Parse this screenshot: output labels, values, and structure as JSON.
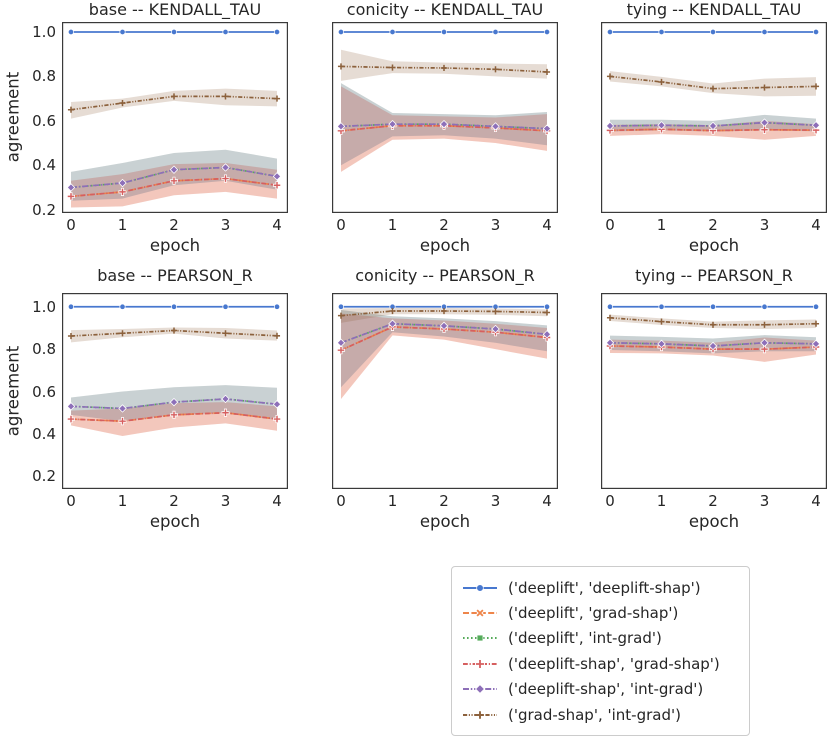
{
  "figure": {
    "background": "#ffffff",
    "text_color": "#262626",
    "spine_color": "#3a3a3a",
    "ylabel": "agreement",
    "xlabel": "epoch"
  },
  "series_styles": [
    {
      "name": "('deeplift', 'deeplift-shap')",
      "color": "#4878cf",
      "marker": "circle",
      "dash": "solid"
    },
    {
      "name": "('deeplift', 'grad-shap')",
      "color": "#ee854a",
      "marker": "x-bold",
      "dash": "dashed"
    },
    {
      "name": "('deeplift', 'int-grad')",
      "color": "#55ab5a",
      "marker": "square",
      "dash": "dotted"
    },
    {
      "name": "('deeplift-shap', 'grad-shap')",
      "color": "#d65f5f",
      "marker": "plus-bold",
      "dash": "dashdot"
    },
    {
      "name": "('deeplift-shap', 'int-grad')",
      "color": "#8d6fb8",
      "marker": "diamond",
      "dash": "longdashdot"
    },
    {
      "name": "('grad-shap', 'int-grad')",
      "color": "#8c613c",
      "marker": "plus-thin",
      "dash": "dashdotdot"
    }
  ],
  "chart_data": [
    {
      "type": "line",
      "title": "base -- KENDALL_TAU",
      "xlabel": "epoch",
      "ylabel": "agreement",
      "x": [
        0,
        1,
        2,
        3,
        4
      ],
      "xticks": [
        "0",
        "1",
        "2",
        "3",
        "4"
      ],
      "yticks": [
        1.0,
        0.8,
        0.6,
        0.4,
        0.2
      ],
      "ylim": [
        0.185,
        1.045
      ],
      "grid": false,
      "series": [
        {
          "name": "('deeplift', 'deeplift-shap')",
          "values": [
            1.0,
            1.0,
            1.0,
            1.0,
            1.0
          ]
        },
        {
          "name": "('deeplift', 'grad-shap')",
          "values": [
            0.26,
            0.28,
            0.33,
            0.34,
            0.31
          ],
          "band_low": [
            0.21,
            0.215,
            0.265,
            0.28,
            0.25
          ],
          "band_high": [
            0.33,
            0.36,
            0.405,
            0.41,
            0.38
          ]
        },
        {
          "name": "('deeplift', 'int-grad')",
          "values": [
            0.3,
            0.32,
            0.38,
            0.39,
            0.35
          ],
          "band_low": [
            0.24,
            0.25,
            0.31,
            0.33,
            0.29
          ],
          "band_high": [
            0.37,
            0.41,
            0.455,
            0.47,
            0.43
          ]
        },
        {
          "name": "('deeplift-shap', 'grad-shap')",
          "values": [
            0.26,
            0.28,
            0.33,
            0.34,
            0.31
          ],
          "band_low": [
            0.21,
            0.215,
            0.265,
            0.28,
            0.25
          ],
          "band_high": [
            0.33,
            0.36,
            0.405,
            0.41,
            0.38
          ]
        },
        {
          "name": "('deeplift-shap', 'int-grad')",
          "values": [
            0.3,
            0.32,
            0.38,
            0.39,
            0.35
          ],
          "band_low": [
            0.24,
            0.25,
            0.31,
            0.33,
            0.29
          ],
          "band_high": [
            0.37,
            0.41,
            0.455,
            0.47,
            0.43
          ]
        },
        {
          "name": "('grad-shap', 'int-grad')",
          "values": [
            0.65,
            0.68,
            0.71,
            0.71,
            0.7
          ],
          "band_low": [
            0.61,
            0.66,
            0.69,
            0.67,
            0.665
          ],
          "band_high": [
            0.685,
            0.7,
            0.735,
            0.745,
            0.735
          ]
        }
      ]
    },
    {
      "type": "line",
      "title": "conicity -- KENDALL_TAU",
      "xlabel": "epoch",
      "ylabel": "agreement",
      "x": [
        0,
        1,
        2,
        3,
        4
      ],
      "xticks": [
        "0",
        "1",
        "2",
        "3",
        "4"
      ],
      "yticks": [
        1.0,
        0.8,
        0.6,
        0.4,
        0.2
      ],
      "ylim": [
        0.185,
        1.045
      ],
      "grid": false,
      "series": [
        {
          "name": "('deeplift', 'deeplift-shap')",
          "values": [
            1.0,
            1.0,
            1.0,
            1.0,
            1.0
          ]
        },
        {
          "name": "('deeplift', 'grad-shap')",
          "values": [
            0.555,
            0.578,
            0.578,
            0.568,
            0.555
          ],
          "band_low": [
            0.37,
            0.515,
            0.52,
            0.5,
            0.465
          ],
          "band_high": [
            0.755,
            0.625,
            0.62,
            0.615,
            0.63
          ]
        },
        {
          "name": "('deeplift', 'int-grad')",
          "values": [
            0.575,
            0.585,
            0.585,
            0.575,
            0.565
          ],
          "band_low": [
            0.4,
            0.53,
            0.535,
            0.52,
            0.49
          ],
          "band_high": [
            0.77,
            0.635,
            0.63,
            0.625,
            0.64
          ]
        },
        {
          "name": "('deeplift-shap', 'grad-shap')",
          "values": [
            0.555,
            0.578,
            0.578,
            0.568,
            0.555
          ],
          "band_low": [
            0.37,
            0.515,
            0.52,
            0.5,
            0.465
          ],
          "band_high": [
            0.755,
            0.625,
            0.62,
            0.615,
            0.63
          ]
        },
        {
          "name": "('deeplift-shap', 'int-grad')",
          "values": [
            0.575,
            0.585,
            0.585,
            0.575,
            0.565
          ],
          "band_low": [
            0.4,
            0.53,
            0.535,
            0.52,
            0.49
          ],
          "band_high": [
            0.77,
            0.635,
            0.63,
            0.625,
            0.64
          ]
        },
        {
          "name": "('grad-shap', 'int-grad')",
          "values": [
            0.845,
            0.84,
            0.838,
            0.832,
            0.82
          ],
          "band_low": [
            0.78,
            0.815,
            0.812,
            0.8,
            0.79
          ],
          "band_high": [
            0.92,
            0.868,
            0.862,
            0.858,
            0.855
          ]
        }
      ]
    },
    {
      "type": "line",
      "title": "tying -- KENDALL_TAU",
      "xlabel": "epoch",
      "ylabel": "agreement",
      "x": [
        0,
        1,
        2,
        3,
        4
      ],
      "xticks": [
        "0",
        "1",
        "2",
        "3",
        "4"
      ],
      "yticks": [
        1.0,
        0.8,
        0.6,
        0.4,
        0.2
      ],
      "ylim": [
        0.185,
        1.045
      ],
      "grid": false,
      "series": [
        {
          "name": "('deeplift', 'deeplift-shap')",
          "values": [
            1.0,
            1.0,
            1.0,
            1.0,
            1.0
          ]
        },
        {
          "name": "('deeplift', 'grad-shap')",
          "values": [
            0.557,
            0.562,
            0.556,
            0.56,
            0.558
          ],
          "band_low": [
            0.532,
            0.54,
            0.532,
            0.515,
            0.532
          ],
          "band_high": [
            0.582,
            0.585,
            0.58,
            0.6,
            0.585
          ]
        },
        {
          "name": "('deeplift', 'int-grad')",
          "values": [
            0.577,
            0.58,
            0.577,
            0.592,
            0.58
          ],
          "band_low": [
            0.552,
            0.557,
            0.552,
            0.557,
            0.553
          ],
          "band_high": [
            0.605,
            0.605,
            0.6,
            0.627,
            0.61
          ]
        },
        {
          "name": "('deeplift-shap', 'grad-shap')",
          "values": [
            0.557,
            0.562,
            0.556,
            0.56,
            0.558
          ],
          "band_low": [
            0.532,
            0.54,
            0.532,
            0.515,
            0.532
          ],
          "band_high": [
            0.582,
            0.585,
            0.58,
            0.6,
            0.585
          ]
        },
        {
          "name": "('deeplift-shap', 'int-grad')",
          "values": [
            0.577,
            0.58,
            0.577,
            0.592,
            0.58
          ],
          "band_low": [
            0.552,
            0.557,
            0.552,
            0.557,
            0.553
          ],
          "band_high": [
            0.605,
            0.605,
            0.6,
            0.627,
            0.61
          ]
        },
        {
          "name": "('grad-shap', 'int-grad')",
          "values": [
            0.8,
            0.775,
            0.745,
            0.75,
            0.755
          ],
          "band_low": [
            0.777,
            0.755,
            0.725,
            0.71,
            0.713
          ],
          "band_high": [
            0.824,
            0.798,
            0.768,
            0.79,
            0.797
          ]
        }
      ]
    },
    {
      "type": "line",
      "title": "base -- PEARSON_R",
      "xlabel": "epoch",
      "ylabel": "agreement",
      "x": [
        0,
        1,
        2,
        3,
        4
      ],
      "xticks": [
        "0",
        "1",
        "2",
        "3",
        "4"
      ],
      "yticks": [
        1.0,
        0.8,
        0.6,
        0.4,
        0.2
      ],
      "ylim": [
        0.14,
        1.065
      ],
      "grid": false,
      "series": [
        {
          "name": "('deeplift', 'deeplift-shap')",
          "values": [
            1.0,
            1.0,
            1.0,
            1.0,
            1.0
          ]
        },
        {
          "name": "('deeplift', 'grad-shap')",
          "values": [
            0.47,
            0.46,
            0.49,
            0.5,
            0.47
          ],
          "band_low": [
            0.44,
            0.39,
            0.43,
            0.45,
            0.415
          ],
          "band_high": [
            0.51,
            0.52,
            0.545,
            0.55,
            0.53
          ]
        },
        {
          "name": "('deeplift', 'int-grad')",
          "values": [
            0.53,
            0.52,
            0.55,
            0.565,
            0.54
          ],
          "band_low": [
            0.49,
            0.46,
            0.49,
            0.5,
            0.465
          ],
          "band_high": [
            0.572,
            0.6,
            0.62,
            0.63,
            0.618
          ]
        },
        {
          "name": "('deeplift-shap', 'grad-shap')",
          "values": [
            0.47,
            0.46,
            0.49,
            0.5,
            0.47
          ],
          "band_low": [
            0.44,
            0.39,
            0.43,
            0.45,
            0.415
          ],
          "band_high": [
            0.51,
            0.52,
            0.545,
            0.55,
            0.53
          ]
        },
        {
          "name": "('deeplift-shap', 'int-grad')",
          "values": [
            0.53,
            0.52,
            0.55,
            0.565,
            0.54
          ],
          "band_low": [
            0.49,
            0.46,
            0.49,
            0.5,
            0.465
          ],
          "band_high": [
            0.572,
            0.6,
            0.62,
            0.63,
            0.618
          ]
        },
        {
          "name": "('grad-shap', 'int-grad')",
          "values": [
            0.862,
            0.875,
            0.888,
            0.875,
            0.863
          ],
          "band_low": [
            0.832,
            0.856,
            0.873,
            0.85,
            0.84
          ],
          "band_high": [
            0.89,
            0.895,
            0.902,
            0.9,
            0.888
          ]
        }
      ]
    },
    {
      "type": "line",
      "title": "conicity -- PEARSON_R",
      "xlabel": "epoch",
      "ylabel": "agreement",
      "x": [
        0,
        1,
        2,
        3,
        4
      ],
      "xticks": [
        "0",
        "1",
        "2",
        "3",
        "4"
      ],
      "yticks": [
        1.0,
        0.8,
        0.6,
        0.4,
        0.2
      ],
      "ylim": [
        0.14,
        1.065
      ],
      "grid": false,
      "series": [
        {
          "name": "('deeplift', 'deeplift-shap')",
          "values": [
            1.0,
            1.0,
            1.0,
            1.0,
            1.0
          ]
        },
        {
          "name": "('deeplift', 'grad-shap')",
          "values": [
            0.795,
            0.905,
            0.895,
            0.88,
            0.855
          ],
          "band_low": [
            0.565,
            0.865,
            0.845,
            0.8,
            0.755
          ],
          "band_high": [
            0.968,
            0.945,
            0.935,
            0.92,
            0.9
          ]
        },
        {
          "name": "('deeplift', 'int-grad')",
          "values": [
            0.83,
            0.92,
            0.91,
            0.895,
            0.87
          ],
          "band_low": [
            0.62,
            0.88,
            0.86,
            0.83,
            0.79
          ],
          "band_high": [
            0.985,
            0.955,
            0.945,
            0.932,
            0.912
          ]
        },
        {
          "name": "('deeplift-shap', 'grad-shap')",
          "values": [
            0.795,
            0.905,
            0.895,
            0.88,
            0.855
          ],
          "band_low": [
            0.565,
            0.865,
            0.845,
            0.8,
            0.755
          ],
          "band_high": [
            0.968,
            0.945,
            0.935,
            0.92,
            0.9
          ]
        },
        {
          "name": "('deeplift-shap', 'int-grad')",
          "values": [
            0.83,
            0.92,
            0.91,
            0.895,
            0.87
          ],
          "band_low": [
            0.62,
            0.88,
            0.86,
            0.83,
            0.79
          ],
          "band_high": [
            0.985,
            0.955,
            0.945,
            0.932,
            0.912
          ]
        },
        {
          "name": "('grad-shap', 'int-grad')",
          "values": [
            0.958,
            0.98,
            0.98,
            0.978,
            0.973
          ],
          "band_low": [
            0.924,
            0.965,
            0.965,
            0.962,
            0.955
          ],
          "band_high": [
            0.992,
            0.994,
            0.994,
            0.992,
            0.988
          ]
        }
      ]
    },
    {
      "type": "line",
      "title": "tying -- PEARSON_R",
      "xlabel": "epoch",
      "ylabel": "agreement",
      "x": [
        0,
        1,
        2,
        3,
        4
      ],
      "xticks": [
        "0",
        "1",
        "2",
        "3",
        "4"
      ],
      "yticks": [
        1.0,
        0.8,
        0.6,
        0.4,
        0.2
      ],
      "ylim": [
        0.14,
        1.065
      ],
      "grid": false,
      "series": [
        {
          "name": "('deeplift', 'deeplift-shap')",
          "values": [
            1.0,
            1.0,
            1.0,
            1.0,
            1.0
          ]
        },
        {
          "name": "('deeplift', 'grad-shap')",
          "values": [
            0.815,
            0.81,
            0.8,
            0.8,
            0.81
          ],
          "band_low": [
            0.782,
            0.78,
            0.77,
            0.74,
            0.775
          ],
          "band_high": [
            0.845,
            0.84,
            0.83,
            0.855,
            0.84
          ]
        },
        {
          "name": "('deeplift', 'int-grad')",
          "values": [
            0.83,
            0.825,
            0.815,
            0.83,
            0.825
          ],
          "band_low": [
            0.796,
            0.79,
            0.78,
            0.79,
            0.79
          ],
          "band_high": [
            0.864,
            0.858,
            0.85,
            0.866,
            0.856
          ]
        },
        {
          "name": "('deeplift-shap', 'grad-shap')",
          "values": [
            0.815,
            0.81,
            0.8,
            0.8,
            0.81
          ],
          "band_low": [
            0.782,
            0.78,
            0.77,
            0.74,
            0.775
          ],
          "band_high": [
            0.845,
            0.84,
            0.83,
            0.855,
            0.84
          ]
        },
        {
          "name": "('deeplift-shap', 'int-grad')",
          "values": [
            0.83,
            0.825,
            0.815,
            0.83,
            0.825
          ],
          "band_low": [
            0.796,
            0.79,
            0.78,
            0.79,
            0.79
          ],
          "band_high": [
            0.864,
            0.858,
            0.85,
            0.866,
            0.856
          ]
        },
        {
          "name": "('grad-shap', 'int-grad')",
          "values": [
            0.948,
            0.93,
            0.915,
            0.915,
            0.92
          ],
          "band_low": [
            0.933,
            0.914,
            0.9,
            0.895,
            0.9
          ],
          "band_high": [
            0.963,
            0.945,
            0.93,
            0.936,
            0.94
          ]
        }
      ]
    }
  ],
  "legend": {
    "entries": [
      "('deeplift', 'deeplift-shap')",
      "('deeplift', 'grad-shap')",
      "('deeplift', 'int-grad')",
      "('deeplift-shap', 'grad-shap')",
      "('deeplift-shap', 'int-grad')",
      "('grad-shap', 'int-grad')"
    ]
  }
}
